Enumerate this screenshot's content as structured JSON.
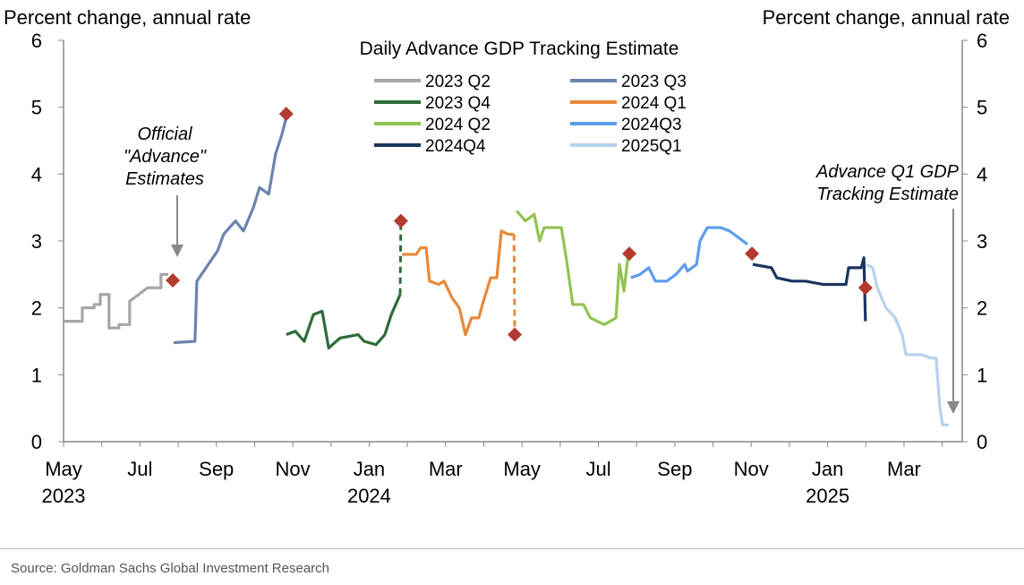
{
  "chart_data": {
    "type": "line",
    "title": "Daily Advance GDP Tracking Estimate",
    "ylabel_left": "Percent change, annual rate",
    "ylabel_right": "Percent change, annual rate",
    "x_units": "months since May 2023",
    "ylim": [
      0,
      6
    ],
    "yticks": [
      0,
      1,
      2,
      3,
      4,
      5,
      6
    ],
    "xticks": [
      {
        "m": 0,
        "label": "May",
        "year": "2023"
      },
      {
        "m": 2,
        "label": "Jul",
        "year": ""
      },
      {
        "m": 4,
        "label": "Sep",
        "year": ""
      },
      {
        "m": 6,
        "label": "Nov",
        "year": ""
      },
      {
        "m": 8,
        "label": "Jan",
        "year": "2024"
      },
      {
        "m": 10,
        "label": "Mar",
        "year": ""
      },
      {
        "m": 12,
        "label": "May",
        "year": ""
      },
      {
        "m": 14,
        "label": "Jul",
        "year": ""
      },
      {
        "m": 16,
        "label": "Sep",
        "year": ""
      },
      {
        "m": 18,
        "label": "Nov",
        "year": ""
      },
      {
        "m": 20,
        "label": "Jan",
        "year": "2025"
      },
      {
        "m": 22,
        "label": "Mar",
        "year": ""
      }
    ],
    "legend": "top-center",
    "marker_color": "#b23a30",
    "series": [
      {
        "name": "2023 Q2",
        "color": "#a6a6a6",
        "points": [
          [
            0,
            1.8
          ],
          [
            0.49,
            1.8
          ],
          [
            0.49,
            2.0
          ],
          [
            0.8,
            2.0
          ],
          [
            0.8,
            2.05
          ],
          [
            0.96,
            2.05
          ],
          [
            0.96,
            2.2
          ],
          [
            1.19,
            2.2
          ],
          [
            1.19,
            1.7
          ],
          [
            1.45,
            1.7
          ],
          [
            1.45,
            1.75
          ],
          [
            1.73,
            1.75
          ],
          [
            1.73,
            2.1
          ],
          [
            1.97,
            2.2
          ],
          [
            2.2,
            2.3
          ],
          [
            2.55,
            2.3
          ],
          [
            2.55,
            2.5
          ],
          [
            2.74,
            2.5
          ]
        ],
        "advance": [
          2.86,
          2.41
        ]
      },
      {
        "name": "2023 Q3",
        "color": "#6b84ad",
        "points": [
          [
            2.88,
            1.48
          ],
          [
            3.44,
            1.5
          ],
          [
            3.49,
            2.4
          ],
          [
            3.73,
            2.6
          ],
          [
            4.03,
            2.85
          ],
          [
            4.19,
            3.1
          ],
          [
            4.5,
            3.3
          ],
          [
            4.71,
            3.15
          ],
          [
            4.97,
            3.5
          ],
          [
            5.13,
            3.8
          ],
          [
            5.37,
            3.7
          ],
          [
            5.55,
            4.3
          ],
          [
            5.72,
            4.6
          ],
          [
            5.83,
            4.85
          ]
        ],
        "advance": [
          5.83,
          4.9
        ]
      },
      {
        "name": "2023 Q4",
        "color": "#2e6b38",
        "points": [
          [
            5.83,
            1.6
          ],
          [
            6.07,
            1.65
          ],
          [
            6.3,
            1.5
          ],
          [
            6.54,
            1.9
          ],
          [
            6.77,
            1.95
          ],
          [
            6.94,
            1.4
          ],
          [
            7.24,
            1.55
          ],
          [
            7.71,
            1.6
          ],
          [
            7.87,
            1.5
          ],
          [
            8.18,
            1.45
          ],
          [
            8.41,
            1.6
          ],
          [
            8.58,
            1.9
          ],
          [
            8.81,
            2.2
          ]
        ],
        "advance": [
          8.83,
          3.3
        ]
      },
      {
        "name": "2024 Q1",
        "color": "#e8893a",
        "points": [
          [
            8.86,
            2.8
          ],
          [
            9.23,
            2.8
          ],
          [
            9.35,
            2.9
          ],
          [
            9.49,
            2.9
          ],
          [
            9.58,
            2.4
          ],
          [
            9.82,
            2.35
          ],
          [
            9.96,
            2.4
          ],
          [
            10.17,
            2.15
          ],
          [
            10.36,
            2.0
          ],
          [
            10.52,
            1.6
          ],
          [
            10.68,
            1.85
          ],
          [
            10.87,
            1.85
          ],
          [
            10.99,
            2.1
          ],
          [
            11.18,
            2.45
          ],
          [
            11.34,
            2.45
          ],
          [
            11.46,
            3.15
          ],
          [
            11.64,
            3.1
          ],
          [
            11.79,
            3.1
          ]
        ],
        "advance": [
          11.81,
          1.6
        ]
      },
      {
        "name": "2024 Q2",
        "color": "#92c353",
        "points": [
          [
            11.86,
            3.45
          ],
          [
            12.09,
            3.3
          ],
          [
            12.32,
            3.4
          ],
          [
            12.46,
            3.0
          ],
          [
            12.58,
            3.2
          ],
          [
            13.03,
            3.2
          ],
          [
            13.17,
            2.7
          ],
          [
            13.33,
            2.05
          ],
          [
            13.61,
            2.05
          ],
          [
            13.79,
            1.85
          ],
          [
            14.15,
            1.75
          ],
          [
            14.46,
            1.85
          ],
          [
            14.55,
            2.65
          ],
          [
            14.67,
            2.25
          ],
          [
            14.78,
            2.8
          ]
        ],
        "advance": [
          14.81,
          2.81
        ]
      },
      {
        "name": "2024Q3",
        "color": "#5b9ded",
        "points": [
          [
            14.85,
            2.45
          ],
          [
            15.09,
            2.5
          ],
          [
            15.32,
            2.6
          ],
          [
            15.49,
            2.4
          ],
          [
            15.79,
            2.4
          ],
          [
            16.03,
            2.5
          ],
          [
            16.26,
            2.65
          ],
          [
            16.33,
            2.55
          ],
          [
            16.57,
            2.65
          ],
          [
            16.66,
            3.0
          ],
          [
            16.85,
            3.2
          ],
          [
            17.2,
            3.2
          ],
          [
            17.43,
            3.15
          ],
          [
            17.67,
            3.05
          ],
          [
            17.9,
            2.95
          ]
        ],
        "advance": [
          18.02,
          2.81
        ]
      },
      {
        "name": "2024Q4",
        "color": "#1b3461",
        "points": [
          [
            18.04,
            2.65
          ],
          [
            18.53,
            2.6
          ],
          [
            18.67,
            2.45
          ],
          [
            19.07,
            2.4
          ],
          [
            19.42,
            2.4
          ],
          [
            19.89,
            2.35
          ],
          [
            20.48,
            2.35
          ],
          [
            20.55,
            2.6
          ],
          [
            20.88,
            2.6
          ],
          [
            20.95,
            2.75
          ],
          [
            20.99,
            1.8
          ]
        ],
        "advance": [
          20.99,
          2.3
        ]
      },
      {
        "name": "2025Q1",
        "color": "#b4d1ef",
        "points": [
          [
            21.02,
            2.65
          ],
          [
            21.18,
            2.6
          ],
          [
            21.3,
            2.3
          ],
          [
            21.53,
            2.0
          ],
          [
            21.77,
            1.85
          ],
          [
            21.95,
            1.6
          ],
          [
            22.05,
            1.3
          ],
          [
            22.24,
            1.3
          ],
          [
            22.47,
            1.3
          ],
          [
            22.7,
            1.25
          ],
          [
            22.84,
            1.25
          ],
          [
            22.94,
            0.5
          ],
          [
            23.01,
            0.25
          ],
          [
            23.17,
            0.25
          ]
        ]
      }
    ],
    "annotations": [
      {
        "lines": [
          "Official",
          "\"Advance\"",
          "Estimates"
        ]
      },
      {
        "lines": [
          "Advance Q1 GDP",
          "Tracking Estimate"
        ]
      }
    ]
  },
  "source": "Source: Goldman Sachs Global Investment Research"
}
